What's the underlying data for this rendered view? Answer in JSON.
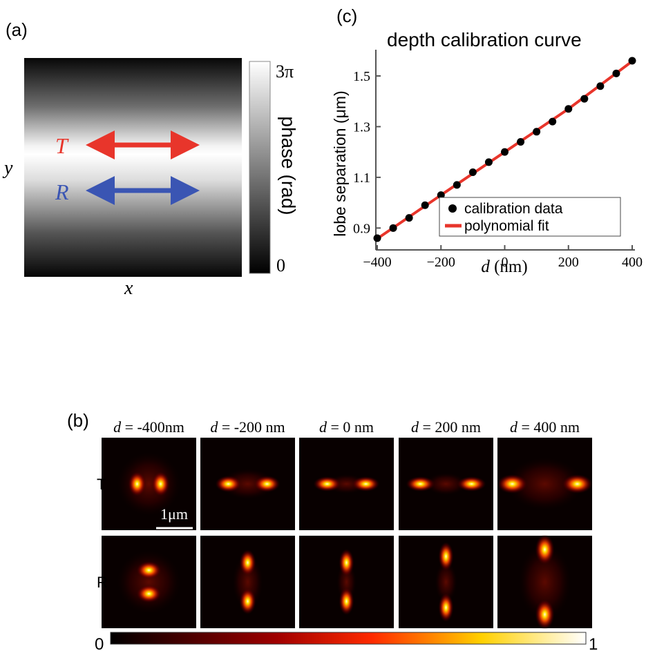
{
  "panel_a": {
    "label": "(a)",
    "x_label": "x",
    "y_label": "y",
    "colorbar_max": "3π",
    "colorbar_min": "0",
    "colorbar_label": "phase (rad)",
    "arrows": [
      {
        "label": "T",
        "color": "#e8352b"
      },
      {
        "label": "R",
        "color": "#3a55b3"
      }
    ]
  },
  "panel_b": {
    "label": "(b)",
    "columns": [
      {
        "d": "d",
        "rest": " = -400nm"
      },
      {
        "d": "d",
        "rest": " = -200 nm"
      },
      {
        "d": "d",
        "rest": " = 0 nm"
      },
      {
        "d": "d",
        "rest": " = 200 nm"
      },
      {
        "d": "d",
        "rest": " = 400 nm"
      }
    ],
    "rows": [
      "T",
      "R"
    ],
    "scalebar": "1μm",
    "colorbar_min": "0",
    "colorbar_max": "1"
  },
  "chart_data": {
    "type": "scatter",
    "panel_label": "(c)",
    "title": "depth calibration curve",
    "xlabel_var": "d",
    "xlabel_unit": " (nm)",
    "ylabel": "lobe separation (μm)",
    "xlim": [
      -410,
      410
    ],
    "ylim": [
      0.82,
      1.62
    ],
    "xticks": [
      -400,
      -200,
      0,
      200,
      400
    ],
    "xtick_labels": [
      "−400",
      "−200",
      "0",
      "200",
      "400"
    ],
    "yticks": [
      0.9,
      1.1,
      1.3,
      1.5
    ],
    "ytick_labels": [
      "0.9",
      "1.1",
      "1.3",
      "1.5"
    ],
    "legend_position": "lower-right",
    "series": [
      {
        "name": "calibration data",
        "kind": "scatter",
        "color": "#000000",
        "x": [
          -400,
          -350,
          -300,
          -250,
          -200,
          -150,
          -100,
          -50,
          0,
          50,
          100,
          150,
          200,
          250,
          300,
          350,
          400
        ],
        "y": [
          0.86,
          0.9,
          0.94,
          0.99,
          1.03,
          1.07,
          1.12,
          1.16,
          1.2,
          1.24,
          1.28,
          1.32,
          1.37,
          1.41,
          1.46,
          1.51,
          1.56
        ]
      },
      {
        "name": "polynomial fit",
        "kind": "line",
        "color": "#e8352b",
        "x": [
          -400,
          -200,
          0,
          200,
          400
        ],
        "y": [
          0.858,
          1.03,
          1.2,
          1.37,
          1.558
        ]
      }
    ]
  }
}
